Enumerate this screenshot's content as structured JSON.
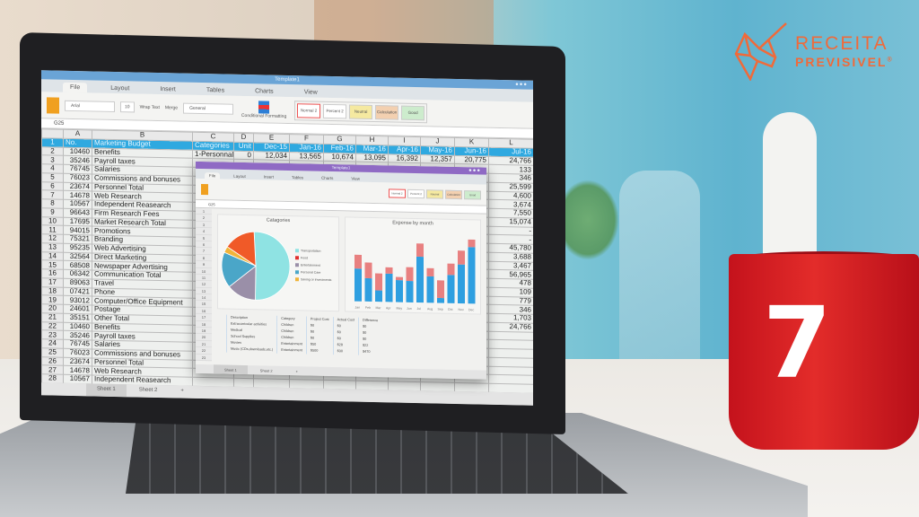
{
  "logo": {
    "line1": "RECEITA",
    "line2": "PREVISIVEL",
    "mark": "®",
    "color": "#f06a3a"
  },
  "mug": {
    "number": "7",
    "color": "#d81f24"
  },
  "main_window": {
    "title": "Template1",
    "tabs": [
      "File",
      "Layout",
      "Insert",
      "Tables",
      "Charts",
      "View"
    ],
    "ribbon": {
      "font": "Arial",
      "size": "10",
      "number_format": "General",
      "wrap": "Wrap Text",
      "merge": "Merge",
      "cond_format": "Conditional Formatting",
      "styles": [
        "Normal 2",
        "Percent 2",
        "Neutral",
        "Calculation",
        "Good"
      ]
    },
    "cell_ref": "G25",
    "columns": [
      "A",
      "B",
      "C",
      "D",
      "E",
      "F",
      "G",
      "H",
      "I",
      "J",
      "K",
      "L"
    ],
    "header_row": [
      "No.",
      "Marketing Budget",
      "Categories",
      "Unit",
      "Dec-15",
      "Jan-16",
      "Feb-16",
      "Mar-16",
      "Apr-16",
      "May-16",
      "Jun-16",
      "Jul-16"
    ],
    "row2": [
      "10460",
      "Benefits",
      "1-Personnal",
      "0",
      "12,034",
      "13,565",
      "10,674",
      "13,095",
      "16,392",
      "12,357",
      "20,775",
      "24,766"
    ],
    "rows": [
      [
        "35246",
        "Payroll taxes"
      ],
      [
        "76745",
        "Salaries"
      ],
      [
        "76023",
        "Commissions and bonuses"
      ],
      [
        "23674",
        "Personnel Total"
      ],
      [
        "14678",
        "Web Research"
      ],
      [
        "10567",
        "Independent Reasearch"
      ],
      [
        "96643",
        "Firm Research Fees"
      ],
      [
        "17695",
        "Market Research Total"
      ],
      [
        "94015",
        "Promotions"
      ],
      [
        "75321",
        "Branding"
      ],
      [
        "95235",
        "Web Advertising"
      ],
      [
        "32564",
        "Direct Marketing"
      ],
      [
        "68508",
        "Newspaper Advertising"
      ],
      [
        "06342",
        "Communication Total"
      ],
      [
        "89063",
        "Travel"
      ],
      [
        "07421",
        "Phone"
      ],
      [
        "93012",
        "Computer/Office Equipment"
      ],
      [
        "24601",
        "Postage"
      ],
      [
        "35151",
        "Other Total"
      ],
      [
        "10460",
        "Benefits"
      ],
      [
        "35246",
        "Payroll taxes"
      ],
      [
        "76745",
        "Salaries"
      ],
      [
        "76023",
        "Commissions and bonuses"
      ],
      [
        "23674",
        "Personnel Total"
      ],
      [
        "14678",
        "Web Research"
      ],
      [
        "10567",
        "Independent Reasearch"
      ]
    ],
    "col_l_values": [
      "133",
      "346",
      "25,599",
      "4,600",
      "3,674",
      "7,550",
      "15,074",
      "-",
      "-",
      "45,780",
      "3,688",
      "3,467",
      "56,965",
      "478",
      "109",
      "779",
      "346",
      "1,703",
      "24,766"
    ],
    "sheet_tabs": [
      "Sheet 1",
      "Sheet 2",
      "+"
    ]
  },
  "inner_window": {
    "title": "Template1",
    "tabs": [
      "File",
      "Layout",
      "Insert",
      "Tables",
      "Charts",
      "View"
    ],
    "cell_ref": "G25",
    "pie": {
      "title": "Catagories",
      "slices": [
        {
          "label": "Transportation",
          "value": 51,
          "color": "#8fe3e3"
        },
        {
          "label": "Food",
          "value": 0,
          "color": "#e0302e"
        },
        {
          "label": "Entertainment",
          "value": 14,
          "color": "#9a8fa8"
        },
        {
          "label": "Personal Care",
          "value": 17,
          "color": "#4aa6c8"
        },
        {
          "label": "Saving or investments",
          "value": 3,
          "color": "#f0b43a"
        },
        {
          "label": "",
          "value": 15,
          "color": "#f05a28"
        }
      ],
      "legend_order": [
        0,
        1,
        2,
        3,
        4
      ]
    },
    "bars": {
      "title": "Expense by month",
      "months": [
        "Jan",
        "Feb",
        "Mar",
        "Apr",
        "May",
        "Jun",
        "Jul",
        "Aug",
        "Sep",
        "Oct",
        "Nov",
        "Dec"
      ],
      "blue": [
        52,
        37,
        18,
        45,
        35,
        34,
        73,
        42,
        8,
        45,
        62,
        90
      ],
      "red": [
        22,
        25,
        27,
        10,
        5,
        22,
        21,
        13,
        28,
        18,
        22,
        12
      ],
      "blue_color": "#2e9fe0",
      "red_color": "#e88080"
    },
    "table": {
      "headers": [
        "Description",
        "Category",
        "Project Cost",
        "Actual Cost",
        "Difference"
      ],
      "rows": [
        [
          "Extracurricular activities",
          "Children",
          "$0",
          "$0",
          "$0"
        ],
        [
          "Medical",
          "Children",
          "$0",
          "$0",
          "$0"
        ],
        [
          "School Supplies",
          "Children",
          "$0",
          "$0",
          "$0"
        ],
        [
          "Movies",
          "Entertainment",
          "$50",
          "$28",
          "$22"
        ],
        [
          "Music (CDs,downloads,etc.)",
          "Entertainment",
          "$500",
          "$30",
          "$470"
        ]
      ]
    },
    "sheet_tabs": [
      "Sheet 1",
      "Sheet 2",
      "+"
    ]
  }
}
